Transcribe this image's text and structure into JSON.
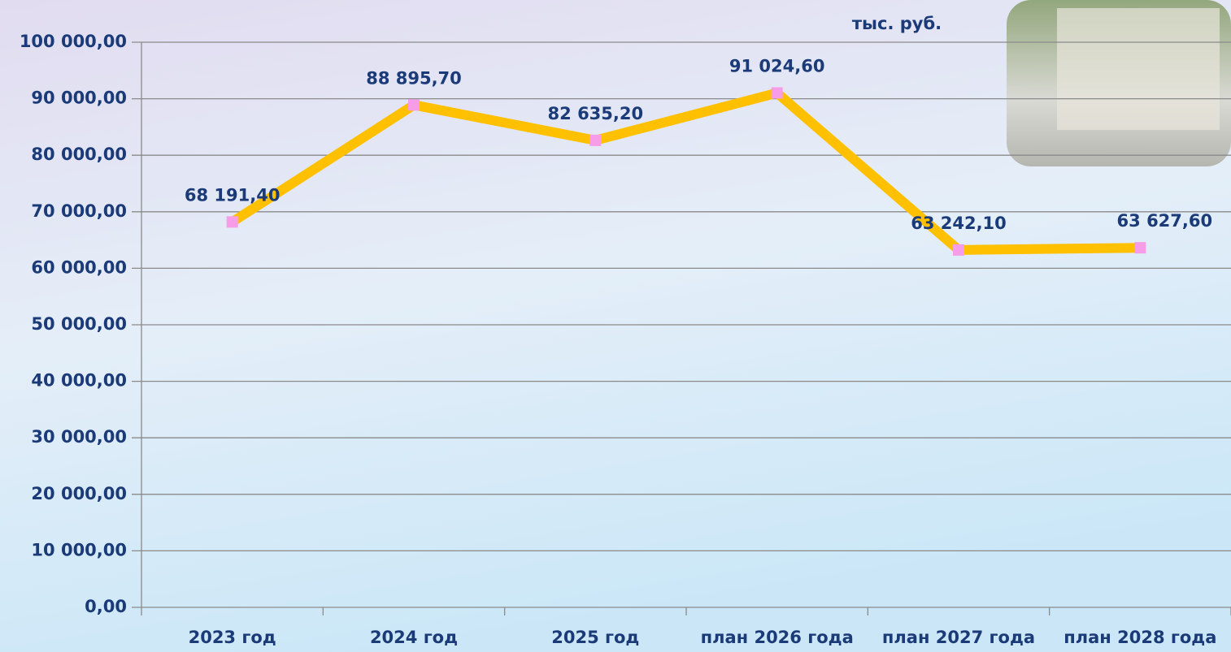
{
  "chart_data": {
    "type": "line",
    "subtitle": "тыс. руб.",
    "categories": [
      "2023 год",
      "2024 год",
      "2025 год",
      "план 2026 года",
      "план 2027 года",
      "план 2028 года"
    ],
    "series": [
      {
        "color": "#ffc000",
        "marker_color": "#f79ce6",
        "values": [
          68191.4,
          88895.7,
          82635.2,
          91024.6,
          63242.1,
          63627.6
        ],
        "value_labels": [
          "68 191,40",
          "88 895,70",
          "82 635,20",
          "91 024,60",
          "63 242,10",
          "63 627,60"
        ]
      }
    ],
    "ylim": [
      0,
      100000
    ],
    "yticks": [
      {
        "value": 0,
        "label": "0,00"
      },
      {
        "value": 10000,
        "label": "10 000,00"
      },
      {
        "value": 20000,
        "label": "20 000,00"
      },
      {
        "value": 30000,
        "label": "30 000,00"
      },
      {
        "value": 40000,
        "label": "40 000,00"
      },
      {
        "value": 50000,
        "label": "50 000,00"
      },
      {
        "value": 60000,
        "label": "60 000,00"
      },
      {
        "value": 70000,
        "label": "70 000,00"
      },
      {
        "value": 80000,
        "label": "80 000,00"
      },
      {
        "value": 90000,
        "label": "90 000,00"
      },
      {
        "value": 100000,
        "label": "100 000,00"
      }
    ],
    "grid": true
  }
}
